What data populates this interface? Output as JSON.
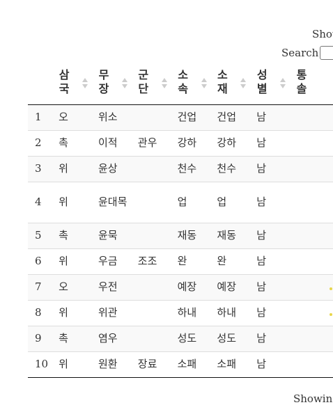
{
  "controls": {
    "show_label": "Show",
    "search_label": "Search:",
    "search_value": "",
    "footer_info": "Showing"
  },
  "columns": [
    "",
    "삼국",
    "무장",
    "군단",
    "소속",
    "소재",
    "성별",
    "통솔"
  ],
  "rows": [
    {
      "n": "1",
      "kingdom": "오",
      "general": "위소",
      "corps": "",
      "belong": "건업",
      "loc": "건업",
      "gender": "남"
    },
    {
      "n": "2",
      "kingdom": "촉",
      "general": "이적",
      "corps": "관우",
      "belong": "강하",
      "loc": "강하",
      "gender": "남"
    },
    {
      "n": "3",
      "kingdom": "위",
      "general": "윤상",
      "corps": "",
      "belong": "천수",
      "loc": "천수",
      "gender": "남"
    },
    {
      "n": "4",
      "kingdom": "위",
      "general": "윤대목",
      "corps": "",
      "belong": "업",
      "loc": "업",
      "gender": "남"
    },
    {
      "n": "5",
      "kingdom": "촉",
      "general": "윤묵",
      "corps": "",
      "belong": "재동",
      "loc": "재동",
      "gender": "남"
    },
    {
      "n": "6",
      "kingdom": "위",
      "general": "우금",
      "corps": "조조",
      "belong": "완",
      "loc": "완",
      "gender": "남"
    },
    {
      "n": "7",
      "kingdom": "오",
      "general": "우전",
      "corps": "",
      "belong": "예장",
      "loc": "예장",
      "gender": "남"
    },
    {
      "n": "8",
      "kingdom": "위",
      "general": "위관",
      "corps": "",
      "belong": "하내",
      "loc": "하내",
      "gender": "남"
    },
    {
      "n": "9",
      "kingdom": "촉",
      "general": "염우",
      "corps": "",
      "belong": "성도",
      "loc": "성도",
      "gender": "남"
    },
    {
      "n": "10",
      "kingdom": "위",
      "general": "원환",
      "corps": "장료",
      "belong": "소패",
      "loc": "소패",
      "gender": "남"
    }
  ],
  "colors": {
    "dot_yellow": "#e8d64a",
    "row_stripe": "#f9f9f9",
    "rule": "#111111"
  }
}
